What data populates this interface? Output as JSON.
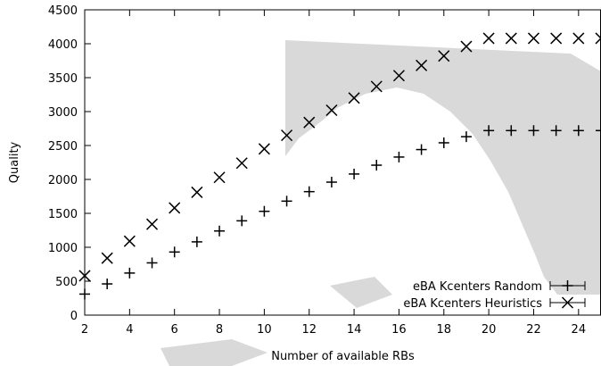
{
  "chart_data": {
    "type": "scatter",
    "title": "",
    "xlabel": "Number of available RBs",
    "ylabel": "Quality",
    "xlim": [
      2,
      25
    ],
    "ylim": [
      0,
      4500
    ],
    "x_ticks": [
      2,
      4,
      6,
      8,
      10,
      12,
      14,
      16,
      18,
      20,
      22,
      24
    ],
    "y_ticks": [
      0,
      500,
      1000,
      1500,
      2000,
      2500,
      3000,
      3500,
      4000,
      4500
    ],
    "grid": false,
    "legend_position": "bottom-right",
    "watermark_color": "#d9d9d9",
    "x": [
      2,
      3,
      4,
      5,
      6,
      7,
      8,
      9,
      10,
      11,
      12,
      13,
      14,
      15,
      16,
      17,
      18,
      19,
      20,
      21,
      22,
      23,
      24,
      25
    ],
    "series": [
      {
        "name": "eBA Kcenters Random",
        "marker": "plus",
        "values": [
          310,
          460,
          620,
          770,
          930,
          1080,
          1240,
          1390,
          1530,
          1680,
          1820,
          1960,
          2080,
          2210,
          2330,
          2440,
          2540,
          2630,
          2720,
          2720,
          2720,
          2720,
          2720,
          2720
        ]
      },
      {
        "name": "eBA Kcenters Heuristics",
        "marker": "x",
        "values": [
          580,
          840,
          1090,
          1340,
          1580,
          1810,
          2030,
          2240,
          2450,
          2650,
          2840,
          3020,
          3200,
          3370,
          3530,
          3680,
          3820,
          3960,
          4080,
          4080,
          4080,
          4080,
          4080,
          4080
        ]
      }
    ]
  }
}
